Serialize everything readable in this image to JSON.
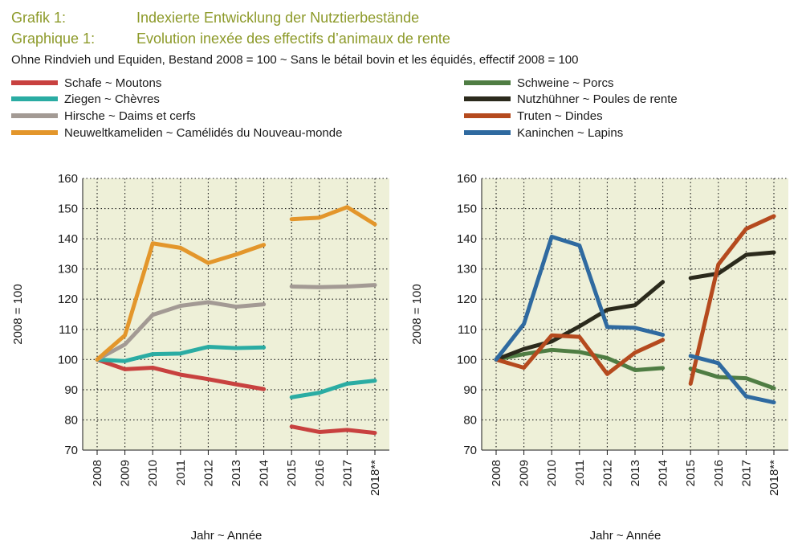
{
  "header": {
    "grafik_label_de": "Grafik 1:",
    "grafik_label_fr": "Graphique 1:",
    "title_de": "Indexierte Entwicklung der Nutztierbestände",
    "title_fr": "Evolution inexée des effectifs d’animaux de rente",
    "subtitle": "Ohne Rindvieh und Equiden, Bestand 2008 = 100   ~   Sans le bétail bovin et les équidés, effectif 2008 = 100"
  },
  "colors": {
    "plot_bg": "#eef0d8",
    "grid": "#1a1a1a",
    "Schafe": "#c8413f",
    "Ziegen": "#2aaca3",
    "Hirsche": "#a39a94",
    "Neuweltkameliden": "#e3962b",
    "Schweine": "#4f7d43",
    "Nutzhuehner": "#2b2a1c",
    "Truten": "#b54a1e",
    "Kaninchen": "#2f6aa0"
  },
  "chart_data": [
    {
      "type": "line",
      "x": [
        "2008",
        "2009",
        "2010",
        "2011",
        "2012",
        "2013",
        "2014",
        "2015",
        "2016",
        "2017",
        "2018**"
      ],
      "ylim": [
        70,
        160
      ],
      "yticks": [
        70,
        80,
        90,
        100,
        110,
        120,
        130,
        140,
        150,
        160
      ],
      "ylabel": "2008 = 100",
      "xlabel": "Jahr  ~  Année",
      "legend_position": "top-left",
      "series": [
        {
          "name": "Schafe  ~  Moutons",
          "key": "Schafe",
          "values": [
            100,
            96.8,
            97.3,
            95.0,
            93.5,
            91.8,
            90.2,
            77.8,
            76.0,
            76.7,
            75.7
          ]
        },
        {
          "name": "Ziegen  ~  Chèvres",
          "key": "Ziegen",
          "values": [
            100,
            99.5,
            101.8,
            102.0,
            104.2,
            103.8,
            104.0,
            87.5,
            89.0,
            92.0,
            93.0
          ]
        },
        {
          "name": "Hirsche  ~  Daims et cerfs",
          "key": "Hirsche",
          "values": [
            100,
            105.0,
            114.8,
            117.8,
            119.0,
            117.5,
            118.3,
            124.2,
            124.0,
            124.2,
            124.7
          ]
        },
        {
          "name": "Neuweltkameliden  ~  Camélidés du Nouveau-monde",
          "key": "Neuweltkameliden",
          "values": [
            100,
            108.0,
            138.5,
            137.0,
            132.0,
            134.8,
            138.0,
            146.5,
            147.0,
            150.5,
            144.8
          ]
        }
      ]
    },
    {
      "type": "line",
      "x": [
        "2008",
        "2009",
        "2010",
        "2011",
        "2012",
        "2013",
        "2014",
        "2015",
        "2016",
        "2017",
        "2018**"
      ],
      "ylim": [
        70,
        160
      ],
      "yticks": [
        70,
        80,
        90,
        100,
        110,
        120,
        130,
        140,
        150,
        160
      ],
      "ylabel": "2008 = 100",
      "xlabel": "Jahr  ~  Année",
      "legend_position": "top-right",
      "series": [
        {
          "name": "Schweine  ~  Porcs",
          "key": "Schweine",
          "values": [
            100,
            101.8,
            103.2,
            102.5,
            100.5,
            96.5,
            97.2,
            97.0,
            94.2,
            93.8,
            90.5
          ]
        },
        {
          "name": "Nutzhühner  ~  Poules de rente",
          "key": "Nutzhuehner",
          "values": [
            100,
            103.5,
            106.0,
            111.0,
            116.5,
            118.0,
            125.7,
            127.0,
            128.5,
            134.7,
            135.5
          ]
        },
        {
          "name": "Truten  ~  Dindes",
          "key": "Truten",
          "values": [
            100,
            97.3,
            108.0,
            107.5,
            95.2,
            102.3,
            106.5,
            92.0,
            131.5,
            143.3,
            147.5
          ]
        },
        {
          "name": "Kaninchen  ~  Lapins",
          "key": "Kaninchen",
          "values": [
            100,
            111.8,
            140.7,
            137.8,
            110.8,
            110.5,
            108.2,
            101.2,
            98.8,
            87.8,
            85.8
          ]
        }
      ]
    }
  ]
}
